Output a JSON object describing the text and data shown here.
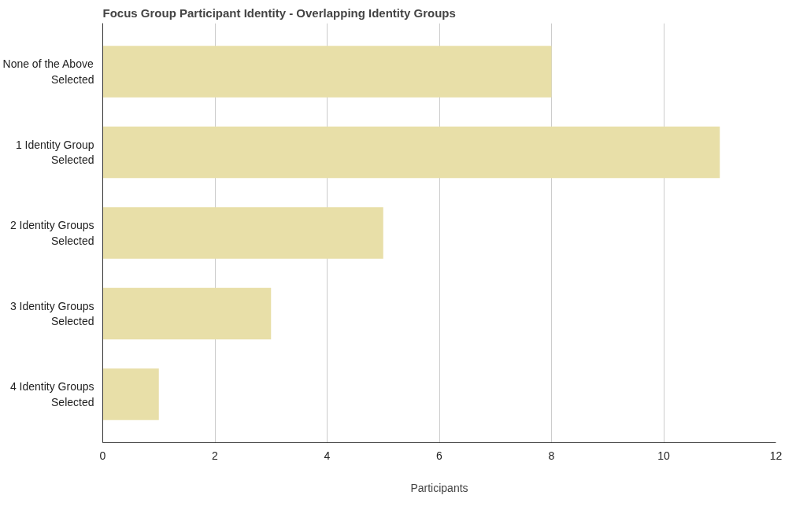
{
  "chart_data": {
    "type": "bar",
    "orientation": "horizontal",
    "title": "Focus Group Participant Identity - Overlapping Identity Groups",
    "xlabel": "Participants",
    "categories": [
      "None of the Above\nSelected",
      "1 Identity Group\nSelected",
      "2 Identity Groups\nSelected",
      "3 Identity Groups\nSelected",
      "4 Identity Groups\nSelected"
    ],
    "values": [
      8,
      11,
      5,
      3,
      1
    ],
    "color": "#e8dfa8",
    "xlim": [
      0,
      12
    ],
    "xticks": [
      0,
      2,
      4,
      6,
      8,
      10,
      12
    ],
    "grid": "x"
  }
}
